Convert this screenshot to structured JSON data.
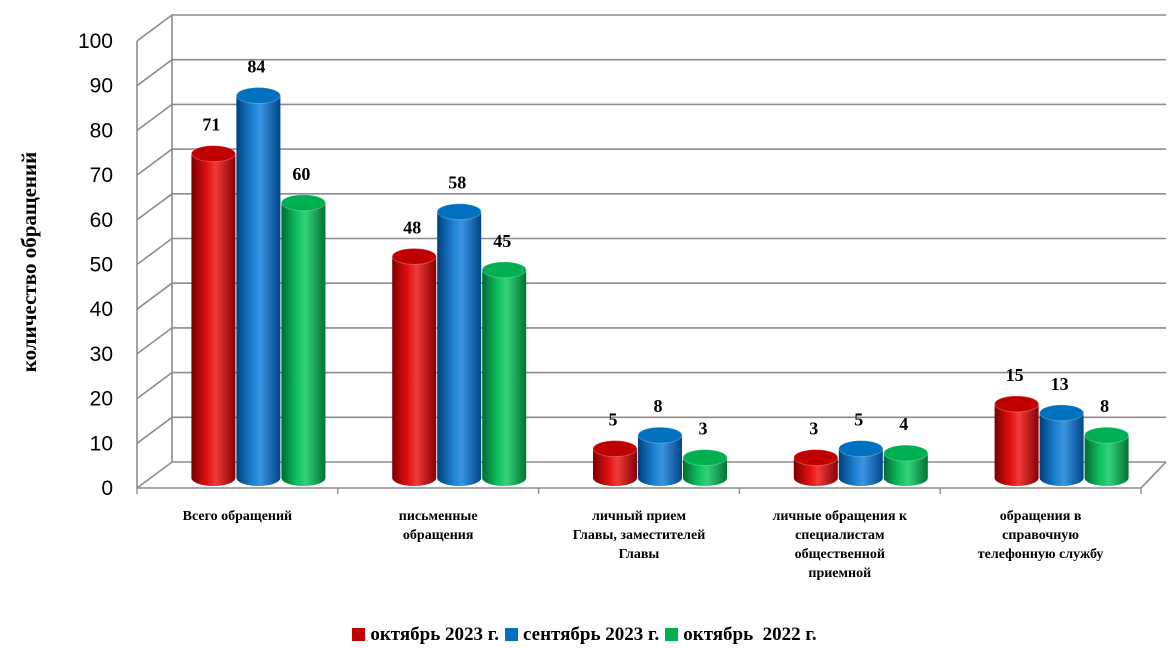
{
  "chart_data": {
    "type": "bar",
    "ylabel": "количество обращений",
    "ylim": [
      0,
      100
    ],
    "yticks": [
      "0",
      "10",
      "20",
      "30",
      "40",
      "50",
      "60",
      "70",
      "80",
      "90",
      "100"
    ],
    "grid": true,
    "legend_position": "bottom",
    "categories": [
      [
        "Всего обращений"
      ],
      [
        "письменные",
        "обращения"
      ],
      [
        "личный прием",
        "Главы, заместителей",
        "Главы"
      ],
      [
        "личные обращения к",
        "специалистам",
        "общественной",
        "приемной"
      ],
      [
        "обращения в",
        "справочную",
        "телефонную службу"
      ]
    ],
    "series": [
      {
        "name": "октябрь 2023 г.",
        "color": "#c00000",
        "values": [
          71,
          48,
          5,
          3,
          15
        ]
      },
      {
        "name": "сентябрь 2023 г.",
        "color": "#0070c0",
        "values": [
          84,
          58,
          8,
          5,
          13
        ]
      },
      {
        "name": "октябрь  2022 г.",
        "color": "#00b050",
        "values": [
          60,
          45,
          3,
          4,
          8
        ]
      }
    ]
  }
}
